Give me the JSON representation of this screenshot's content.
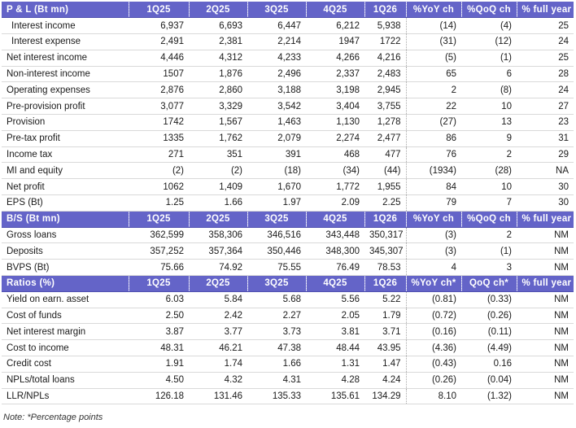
{
  "sections": [
    {
      "header": [
        "P & L (Bt mn)",
        "1Q25",
        "2Q25",
        "3Q25",
        "4Q25",
        "1Q26",
        "%YoY ch",
        "%QoQ ch",
        "% full year"
      ],
      "rows": [
        [
          "Interest income",
          "6,937",
          "6,693",
          "6,447",
          "6,212",
          "5,938",
          "(14)",
          "(4)",
          "25"
        ],
        [
          "Interest expense",
          "2,491",
          "2,381",
          "2,214",
          "1947",
          "1722",
          "(31)",
          "(12)",
          "24"
        ],
        [
          "Net interest income",
          "4,446",
          "4,312",
          "4,233",
          "4,266",
          "4,216",
          "(5)",
          "(1)",
          "25"
        ],
        [
          "Non-interest income",
          "1507",
          "1,876",
          "2,496",
          "2,337",
          "2,483",
          "65",
          "6",
          "28"
        ],
        [
          "Operating expenses",
          "2,876",
          "2,860",
          "3,188",
          "3,198",
          "2,945",
          "2",
          "(8)",
          "24"
        ],
        [
          "Pre-provision profit",
          "3,077",
          "3,329",
          "3,542",
          "3,404",
          "3,755",
          "22",
          "10",
          "27"
        ],
        [
          "Provision",
          "1742",
          "1,567",
          "1,463",
          "1,130",
          "1,278",
          "(27)",
          "13",
          "23"
        ],
        [
          "Pre-tax profit",
          "1335",
          "1,762",
          "2,079",
          "2,274",
          "2,477",
          "86",
          "9",
          "31"
        ],
        [
          "Income tax",
          "271",
          "351",
          "391",
          "468",
          "477",
          "76",
          "2",
          "29"
        ],
        [
          "MI and equity",
          "(2)",
          "(2)",
          "(18)",
          "(34)",
          "(44)",
          "(1934)",
          "(28)",
          "NA"
        ],
        [
          "Net profit",
          "1062",
          "1,409",
          "1,670",
          "1,772",
          "1,955",
          "84",
          "10",
          "30"
        ],
        [
          "EPS (Bt)",
          "1.25",
          "1.66",
          "1.97",
          "2.09",
          "2.25",
          "79",
          "7",
          "30"
        ]
      ]
    },
    {
      "header": [
        "B/S (Bt mn)",
        "1Q25",
        "2Q25",
        "3Q25",
        "4Q25",
        "1Q26",
        "%YoY ch",
        "%QoQ ch",
        "% full year"
      ],
      "rows": [
        [
          "Gross loans",
          "362,599",
          "358,306",
          "346,516",
          "343,448",
          "350,317",
          "(3)",
          "2",
          "NM"
        ],
        [
          "Deposits",
          "357,252",
          "357,364",
          "350,446",
          "348,300",
          "345,307",
          "(3)",
          "(1)",
          "NM"
        ],
        [
          "BVPS (Bt)",
          "75.66",
          "74.92",
          "75.55",
          "76.49",
          "78.53",
          "4",
          "3",
          "NM"
        ]
      ]
    },
    {
      "header": [
        "Ratios (%)",
        "1Q25",
        "2Q25",
        "3Q25",
        "4Q25",
        "1Q26",
        "%YoY ch*",
        "QoQ ch*",
        "% full year"
      ],
      "rows": [
        [
          "Yield on earn. asset",
          "6.03",
          "5.84",
          "5.68",
          "5.56",
          "5.22",
          "(0.81)",
          "(0.33)",
          "NM"
        ],
        [
          "Cost of funds",
          "2.50",
          "2.42",
          "2.27",
          "2.05",
          "1.79",
          "(0.72)",
          "(0.26)",
          "NM"
        ],
        [
          "Net interest margin",
          "3.87",
          "3.77",
          "3.73",
          "3.81",
          "3.71",
          "(0.16)",
          "(0.11)",
          "NM"
        ],
        [
          "Cost to income",
          "48.31",
          "46.21",
          "47.38",
          "48.44",
          "43.95",
          "(4.36)",
          "(4.49)",
          "NM"
        ],
        [
          "Credit cost",
          "1.91",
          "1.74",
          "1.66",
          "1.31",
          "1.47",
          "(0.43)",
          "0.16",
          "NM"
        ],
        [
          "NPLs/total loans",
          "4.50",
          "4.32",
          "4.31",
          "4.28",
          "4.24",
          "(0.26)",
          "(0.04)",
          "NM"
        ],
        [
          "LLR/NPLs",
          "126.18",
          "131.46",
          "135.33",
          "135.61",
          "134.29",
          "8.10",
          "(1.32)",
          "NM"
        ]
      ]
    }
  ],
  "note": "Note: *Percentage points"
}
